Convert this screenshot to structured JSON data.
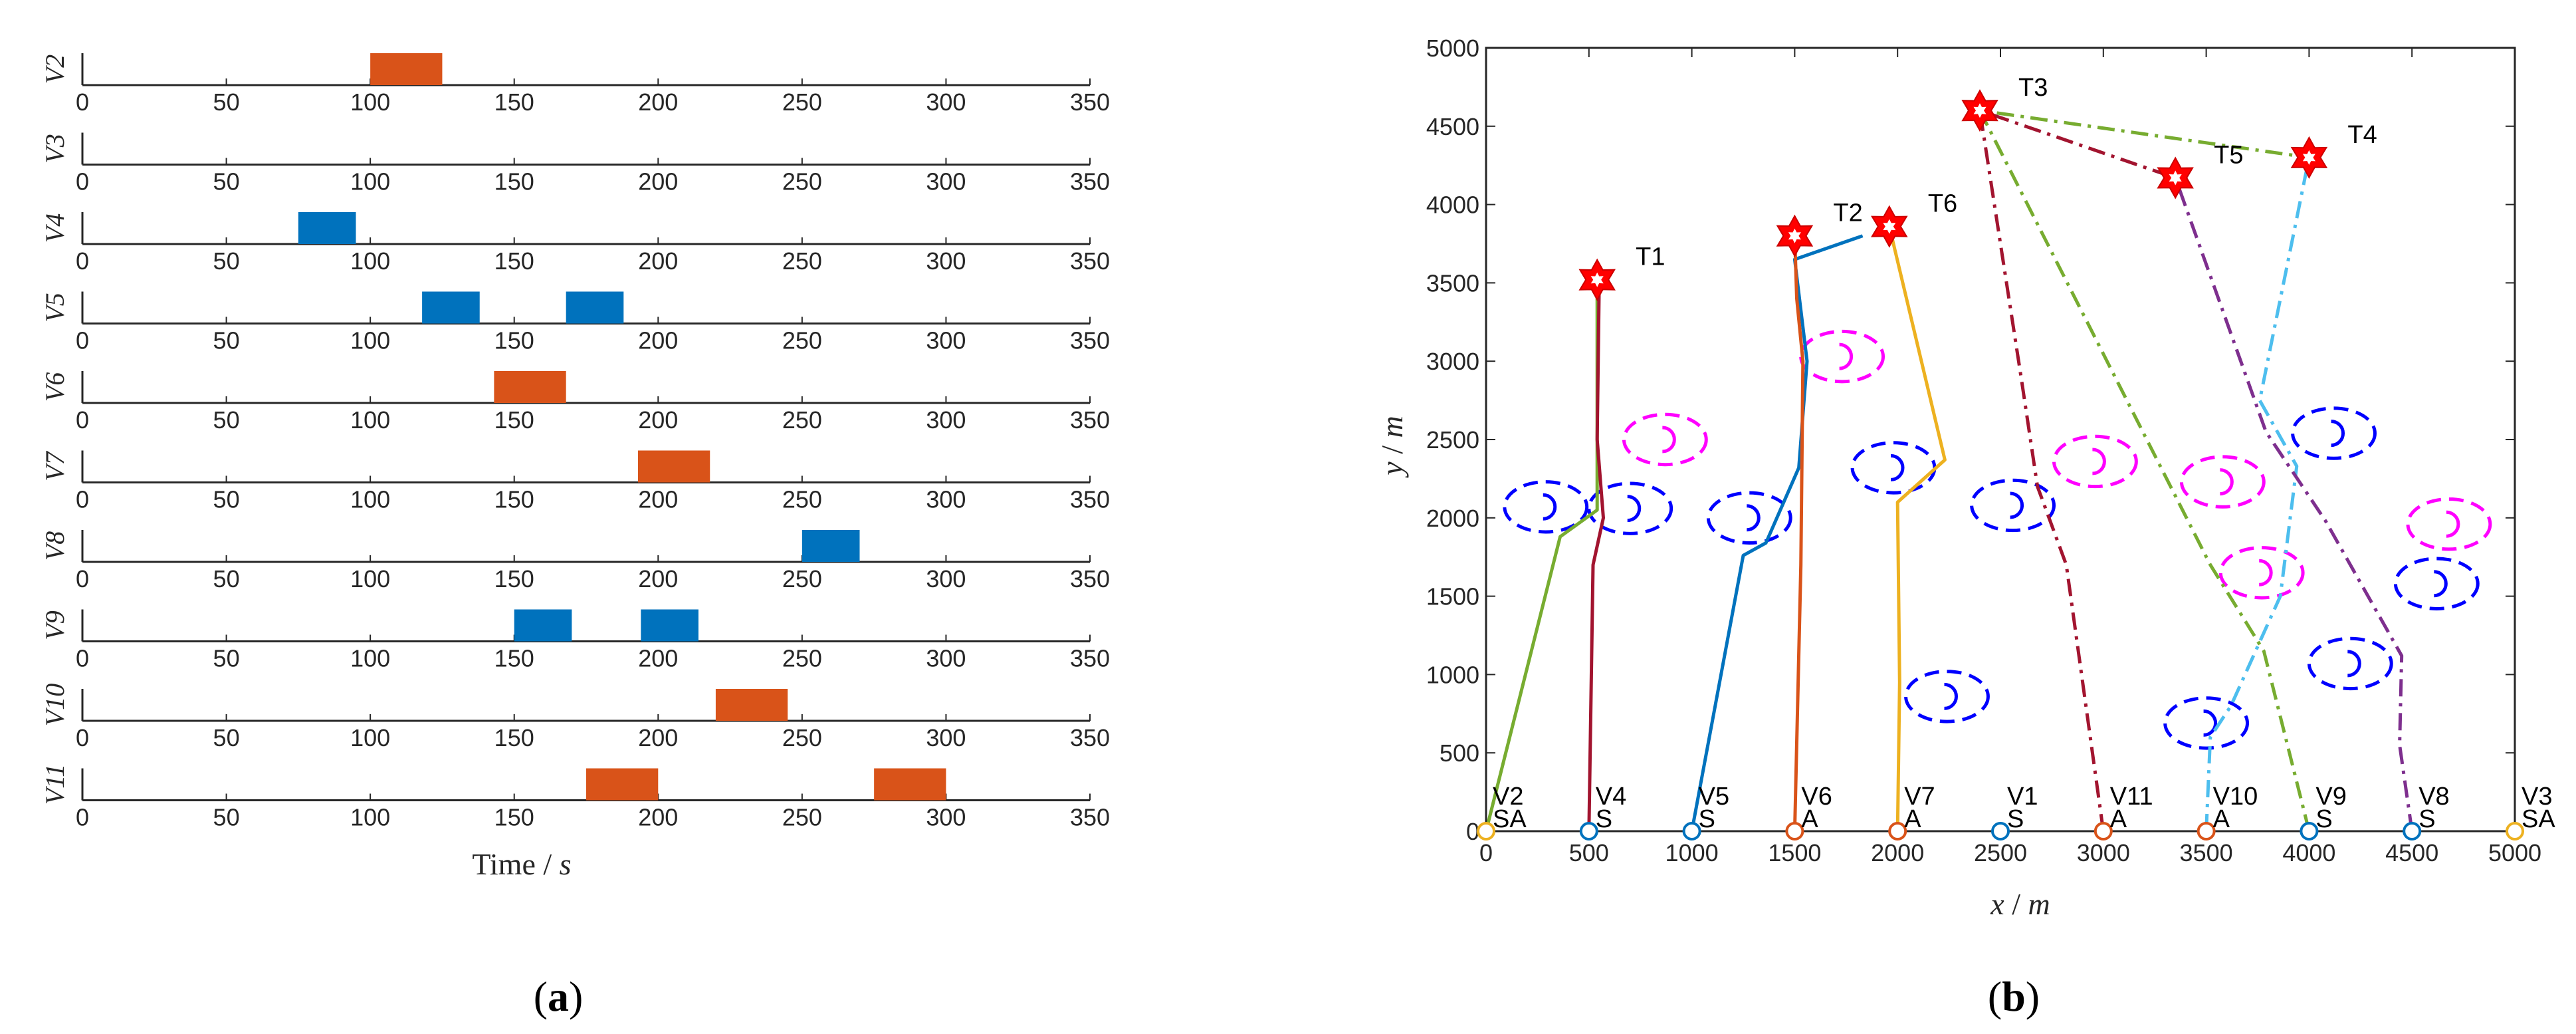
{
  "panels": {
    "a_caption_open": "(",
    "a_caption_letter": "a",
    "a_caption_close": ")",
    "b_caption_open": "(",
    "b_caption_letter": "b",
    "b_caption_close": ")"
  },
  "chart_data": [
    {
      "type": "bar",
      "layout": "timeline-rows",
      "xlabel_prefix": "Time / ",
      "xlabel_unit": "s",
      "xlim": [
        0,
        350
      ],
      "xticks": [
        0,
        50,
        100,
        150,
        200,
        250,
        300,
        350
      ],
      "colors": {
        "orange": "#D95319",
        "blue": "#0072BD"
      },
      "rows": [
        {
          "name": "V2",
          "intervals": [
            {
              "start": 100,
              "end": 125,
              "color": "orange"
            }
          ]
        },
        {
          "name": "V3",
          "intervals": []
        },
        {
          "name": "V4",
          "intervals": [
            {
              "start": 75,
              "end": 95,
              "color": "blue"
            }
          ]
        },
        {
          "name": "V5",
          "intervals": [
            {
              "start": 118,
              "end": 138,
              "color": "blue"
            },
            {
              "start": 168,
              "end": 188,
              "color": "blue"
            }
          ]
        },
        {
          "name": "V6",
          "intervals": [
            {
              "start": 143,
              "end": 168,
              "color": "orange"
            }
          ]
        },
        {
          "name": "V7",
          "intervals": [
            {
              "start": 193,
              "end": 218,
              "color": "orange"
            }
          ]
        },
        {
          "name": "V8",
          "intervals": [
            {
              "start": 250,
              "end": 270,
              "color": "blue"
            }
          ]
        },
        {
          "name": "V9",
          "intervals": [
            {
              "start": 150,
              "end": 170,
              "color": "blue"
            },
            {
              "start": 194,
              "end": 214,
              "color": "blue"
            }
          ]
        },
        {
          "name": "V10",
          "intervals": [
            {
              "start": 220,
              "end": 245,
              "color": "orange"
            }
          ]
        },
        {
          "name": "V11",
          "intervals": [
            {
              "start": 175,
              "end": 200,
              "color": "orange"
            },
            {
              "start": 275,
              "end": 300,
              "color": "orange"
            }
          ]
        }
      ]
    },
    {
      "type": "line",
      "xlabel_var": "x",
      "xlabel_unit": "m",
      "ylabel_var": "y",
      "ylabel_unit": "m",
      "xlim": [
        0,
        5000
      ],
      "ylim": [
        0,
        5000
      ],
      "xticks": [
        0,
        500,
        1000,
        1500,
        2000,
        2500,
        3000,
        3500,
        4000,
        4500,
        5000
      ],
      "yticks": [
        0,
        500,
        1000,
        1500,
        2000,
        2500,
        3000,
        3500,
        4000,
        4500,
        5000
      ],
      "targets": [
        {
          "name": "T1",
          "x": 540,
          "y": 3520
        },
        {
          "name": "T2",
          "x": 1500,
          "y": 3800
        },
        {
          "name": "T6",
          "x": 1960,
          "y": 3860
        },
        {
          "name": "T3",
          "x": 2400,
          "y": 4600
        },
        {
          "name": "T5",
          "x": 3350,
          "y": 4170
        },
        {
          "name": "T4",
          "x": 4000,
          "y": 4300
        }
      ],
      "vehicles": [
        {
          "name": "V2",
          "type": "SA",
          "x": 0,
          "color": "#EDB120"
        },
        {
          "name": "V4",
          "type": "S",
          "x": 500,
          "color": "#0072BD"
        },
        {
          "name": "V5",
          "type": "S",
          "x": 1000,
          "color": "#0072BD"
        },
        {
          "name": "V6",
          "type": "A",
          "x": 1500,
          "color": "#D95319"
        },
        {
          "name": "V7",
          "type": "A",
          "x": 2000,
          "color": "#D95319"
        },
        {
          "name": "V1",
          "type": "S",
          "x": 2500,
          "color": "#0072BD"
        },
        {
          "name": "V11",
          "type": "A",
          "x": 3000,
          "color": "#D95319"
        },
        {
          "name": "V10",
          "type": "A",
          "x": 3500,
          "color": "#D95319"
        },
        {
          "name": "V9",
          "type": "S",
          "x": 4000,
          "color": "#0072BD"
        },
        {
          "name": "V8",
          "type": "S",
          "x": 4500,
          "color": "#0072BD"
        },
        {
          "name": "V3",
          "type": "SA",
          "x": 5000,
          "color": "#EDB120"
        }
      ],
      "threats": [
        {
          "x": 290,
          "y": 2070,
          "color": "blue"
        },
        {
          "x": 700,
          "y": 2060,
          "color": "blue"
        },
        {
          "x": 1280,
          "y": 2000,
          "color": "blue"
        },
        {
          "x": 1980,
          "y": 2320,
          "color": "blue"
        },
        {
          "x": 2560,
          "y": 2080,
          "color": "blue"
        },
        {
          "x": 2240,
          "y": 860,
          "color": "blue"
        },
        {
          "x": 3500,
          "y": 690,
          "color": "blue"
        },
        {
          "x": 4200,
          "y": 1070,
          "color": "blue"
        },
        {
          "x": 4120,
          "y": 2540,
          "color": "blue"
        },
        {
          "x": 4620,
          "y": 1580,
          "color": "blue"
        },
        {
          "x": 870,
          "y": 2500,
          "color": "magenta"
        },
        {
          "x": 1730,
          "y": 3030,
          "color": "magenta"
        },
        {
          "x": 2960,
          "y": 2360,
          "color": "magenta"
        },
        {
          "x": 3580,
          "y": 2230,
          "color": "magenta"
        },
        {
          "x": 3770,
          "y": 1650,
          "color": "magenta"
        },
        {
          "x": 4680,
          "y": 1960,
          "color": "magenta"
        }
      ],
      "series": [
        {
          "color": "#77AC30",
          "style": "solid",
          "points": [
            [
              0,
              0
            ],
            [
              360,
              1880
            ],
            [
              540,
              2050
            ],
            [
              540,
              3520
            ]
          ]
        },
        {
          "color": "#A2142F",
          "style": "solid",
          "points": [
            [
              500,
              0
            ],
            [
              520,
              1700
            ],
            [
              570,
              2000
            ],
            [
              540,
              2500
            ],
            [
              550,
              3520
            ]
          ]
        },
        {
          "color": "#0072BD",
          "style": "solid",
          "points": [
            [
              1000,
              0
            ],
            [
              1250,
              1760
            ],
            [
              1360,
              1840
            ],
            [
              1520,
              2320
            ],
            [
              1560,
              3000
            ],
            [
              1500,
              3650
            ],
            [
              1830,
              3800
            ]
          ]
        },
        {
          "color": "#D95319",
          "style": "solid",
          "points": [
            [
              1500,
              0
            ],
            [
              1530,
              1700
            ],
            [
              1540,
              3000
            ],
            [
              1510,
              3400
            ],
            [
              1500,
              3800
            ]
          ]
        },
        {
          "color": "#EDB120",
          "style": "solid",
          "points": [
            [
              2000,
              0
            ],
            [
              2010,
              950
            ],
            [
              2000,
              2100
            ],
            [
              2230,
              2370
            ],
            [
              1960,
              3860
            ]
          ]
        },
        {
          "color": "#A2142F",
          "style": "dashdot",
          "points": [
            [
              3000,
              0
            ],
            [
              2820,
              1700
            ],
            [
              2680,
              2200
            ],
            [
              2600,
              2900
            ],
            [
              2400,
              4600
            ],
            [
              3350,
              4170
            ]
          ]
        },
        {
          "color": "#77AC30",
          "style": "dashdot",
          "points": [
            [
              4000,
              0
            ],
            [
              3780,
              1150
            ],
            [
              3520,
              1700
            ],
            [
              2400,
              4600
            ],
            [
              4000,
              4300
            ]
          ]
        },
        {
          "color": "#4DBEEE",
          "style": "dashdot",
          "points": [
            [
              3500,
              0
            ],
            [
              3520,
              600
            ],
            [
              3620,
              800
            ],
            [
              3860,
              1500
            ],
            [
              3940,
              2330
            ],
            [
              3760,
              2750
            ],
            [
              4000,
              4300
            ]
          ]
        },
        {
          "color": "#7E2F8E",
          "style": "dashdot",
          "points": [
            [
              4500,
              0
            ],
            [
              4440,
              550
            ],
            [
              4450,
              1120
            ],
            [
              4080,
              1980
            ],
            [
              3790,
              2550
            ],
            [
              3350,
              4170
            ]
          ]
        }
      ]
    }
  ]
}
